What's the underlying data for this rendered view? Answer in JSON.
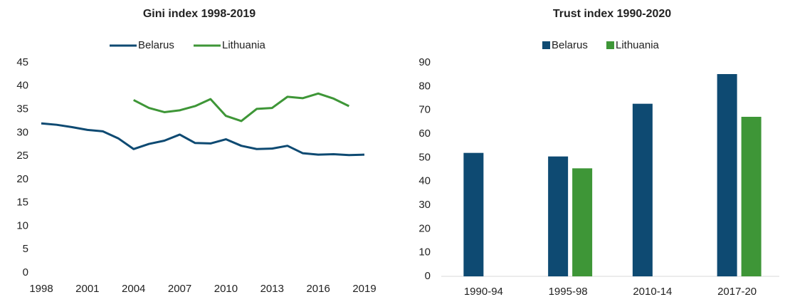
{
  "chart_data": [
    {
      "type": "line",
      "title": "Gini index 1998-2019",
      "legend": "top",
      "x": [
        1998,
        1999,
        2000,
        2001,
        2002,
        2003,
        2004,
        2005,
        2006,
        2007,
        2008,
        2009,
        2010,
        2011,
        2012,
        2013,
        2014,
        2015,
        2016,
        2017,
        2018,
        2019
      ],
      "series": [
        {
          "name": "Belarus",
          "color": "#0e4a72",
          "values": [
            32.0,
            31.7,
            31.2,
            30.6,
            30.3,
            28.8,
            26.5,
            27.6,
            28.3,
            29.6,
            27.8,
            27.7,
            28.6,
            27.2,
            26.5,
            26.6,
            27.2,
            25.6,
            25.3,
            25.4,
            25.2,
            25.3
          ]
        },
        {
          "name": "Lithuania",
          "color": "#3e9637",
          "values": [
            null,
            null,
            null,
            null,
            null,
            null,
            37.0,
            35.3,
            34.4,
            34.8,
            35.7,
            37.2,
            33.6,
            32.5,
            35.1,
            35.3,
            37.7,
            37.4,
            38.4,
            37.3,
            35.7,
            null
          ]
        }
      ],
      "xlim": [
        1998,
        2019
      ],
      "xticks": [
        1998,
        2001,
        2004,
        2007,
        2010,
        2013,
        2016,
        2019
      ],
      "ylim": [
        0,
        45
      ],
      "yticks": [
        0,
        5,
        10,
        15,
        20,
        25,
        30,
        35,
        40,
        45
      ]
    },
    {
      "type": "bar",
      "title": "Trust index 1990-2020",
      "legend": "top",
      "categories": [
        "1990-94",
        "1995-98",
        "2010-14",
        "2017-20"
      ],
      "series": [
        {
          "name": "Belarus",
          "color": "#0e4a72",
          "values": [
            52.0,
            50.5,
            72.7,
            85.2
          ]
        },
        {
          "name": "Lithuania",
          "color": "#3e9637",
          "values": [
            null,
            45.5,
            null,
            67.2
          ]
        }
      ],
      "ylim": [
        0,
        90
      ],
      "yticks": [
        0,
        10,
        20,
        30,
        40,
        50,
        60,
        70,
        80,
        90
      ]
    }
  ]
}
